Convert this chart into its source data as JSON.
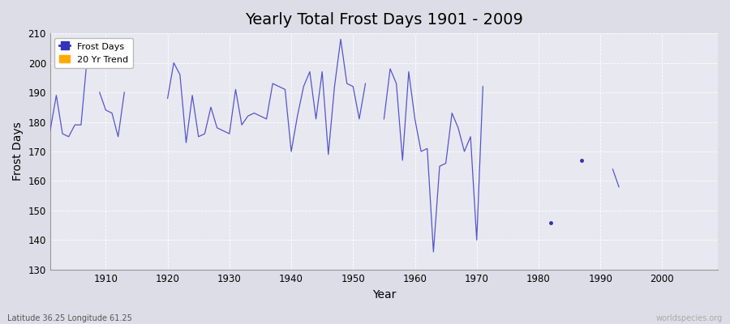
{
  "title": "Yearly Total Frost Days 1901 - 2009",
  "xlabel": "Year",
  "ylabel": "Frost Days",
  "xlim": [
    1901,
    2009
  ],
  "ylim": [
    130,
    210
  ],
  "yticks": [
    130,
    140,
    150,
    160,
    170,
    180,
    190,
    200,
    210
  ],
  "xticks": [
    1910,
    1920,
    1930,
    1940,
    1950,
    1960,
    1970,
    1980,
    1990,
    2000
  ],
  "bg_color": "#dddde8",
  "plot_bg_color": "#e8e8f0",
  "line_color": "#5555cc",
  "marker_color": "#3333aa",
  "title_fontsize": 14,
  "axis_label_fontsize": 10,
  "tick_fontsize": 8.5,
  "footnote_left": "Latitude 36.25 Longitude 61.25",
  "footnote_right": "worldspecies.org",
  "legend_labels": [
    "Frost Days",
    "20 Yr Trend"
  ],
  "legend_colors": [
    "#3333bb",
    "#ffaa00"
  ],
  "data": [
    [
      1901,
      177
    ],
    [
      1902,
      189
    ],
    [
      1903,
      176
    ],
    [
      1904,
      175
    ],
    [
      1905,
      179
    ],
    [
      1906,
      179
    ],
    [
      1907,
      202
    ],
    [
      1908,
      null
    ],
    [
      1909,
      190
    ],
    [
      1910,
      184
    ],
    [
      1911,
      183
    ],
    [
      1912,
      175
    ],
    [
      1913,
      190
    ],
    [
      1914,
      null
    ],
    [
      1915,
      null
    ],
    [
      1916,
      null
    ],
    [
      1917,
      null
    ],
    [
      1918,
      null
    ],
    [
      1919,
      null
    ],
    [
      1920,
      188
    ],
    [
      1921,
      200
    ],
    [
      1922,
      196
    ],
    [
      1923,
      173
    ],
    [
      1924,
      189
    ],
    [
      1925,
      175
    ],
    [
      1926,
      176
    ],
    [
      1927,
      185
    ],
    [
      1928,
      178
    ],
    [
      1929,
      177
    ],
    [
      1930,
      176
    ],
    [
      1931,
      191
    ],
    [
      1932,
      179
    ],
    [
      1933,
      182
    ],
    [
      1934,
      183
    ],
    [
      1935,
      182
    ],
    [
      1936,
      181
    ],
    [
      1937,
      193
    ],
    [
      1938,
      192
    ],
    [
      1939,
      191
    ],
    [
      1940,
      170
    ],
    [
      1941,
      182
    ],
    [
      1942,
      192
    ],
    [
      1943,
      197
    ],
    [
      1944,
      181
    ],
    [
      1945,
      197
    ],
    [
      1946,
      169
    ],
    [
      1947,
      192
    ],
    [
      1948,
      208
    ],
    [
      1949,
      193
    ],
    [
      1950,
      192
    ],
    [
      1951,
      181
    ],
    [
      1952,
      193
    ],
    [
      1953,
      null
    ],
    [
      1954,
      null
    ],
    [
      1955,
      181
    ],
    [
      1956,
      198
    ],
    [
      1957,
      193
    ],
    [
      1958,
      167
    ],
    [
      1959,
      197
    ],
    [
      1960,
      181
    ],
    [
      1961,
      170
    ],
    [
      1962,
      171
    ],
    [
      1963,
      136
    ],
    [
      1964,
      165
    ],
    [
      1965,
      166
    ],
    [
      1966,
      183
    ],
    [
      1967,
      178
    ],
    [
      1968,
      170
    ],
    [
      1969,
      175
    ],
    [
      1970,
      140
    ],
    [
      1971,
      192
    ],
    [
      1972,
      null
    ],
    [
      1973,
      null
    ],
    [
      1974,
      null
    ],
    [
      1975,
      null
    ],
    [
      1976,
      null
    ],
    [
      1977,
      null
    ],
    [
      1978,
      null
    ],
    [
      1979,
      null
    ],
    [
      1980,
      null
    ],
    [
      1981,
      null
    ],
    [
      1982,
      146
    ],
    [
      1983,
      null
    ],
    [
      1984,
      null
    ],
    [
      1985,
      null
    ],
    [
      1986,
      null
    ],
    [
      1987,
      167
    ],
    [
      1988,
      null
    ],
    [
      1989,
      null
    ],
    [
      1990,
      null
    ],
    [
      1991,
      null
    ],
    [
      1992,
      164
    ],
    [
      1993,
      158
    ],
    [
      1994,
      null
    ],
    [
      1995,
      null
    ],
    [
      1996,
      null
    ],
    [
      1997,
      null
    ],
    [
      1998,
      null
    ],
    [
      1999,
      null
    ],
    [
      2000,
      null
    ],
    [
      2001,
      null
    ],
    [
      2002,
      null
    ],
    [
      2003,
      null
    ],
    [
      2004,
      null
    ],
    [
      2005,
      null
    ],
    [
      2006,
      null
    ],
    [
      2007,
      null
    ],
    [
      2008,
      null
    ],
    [
      2009,
      null
    ]
  ]
}
